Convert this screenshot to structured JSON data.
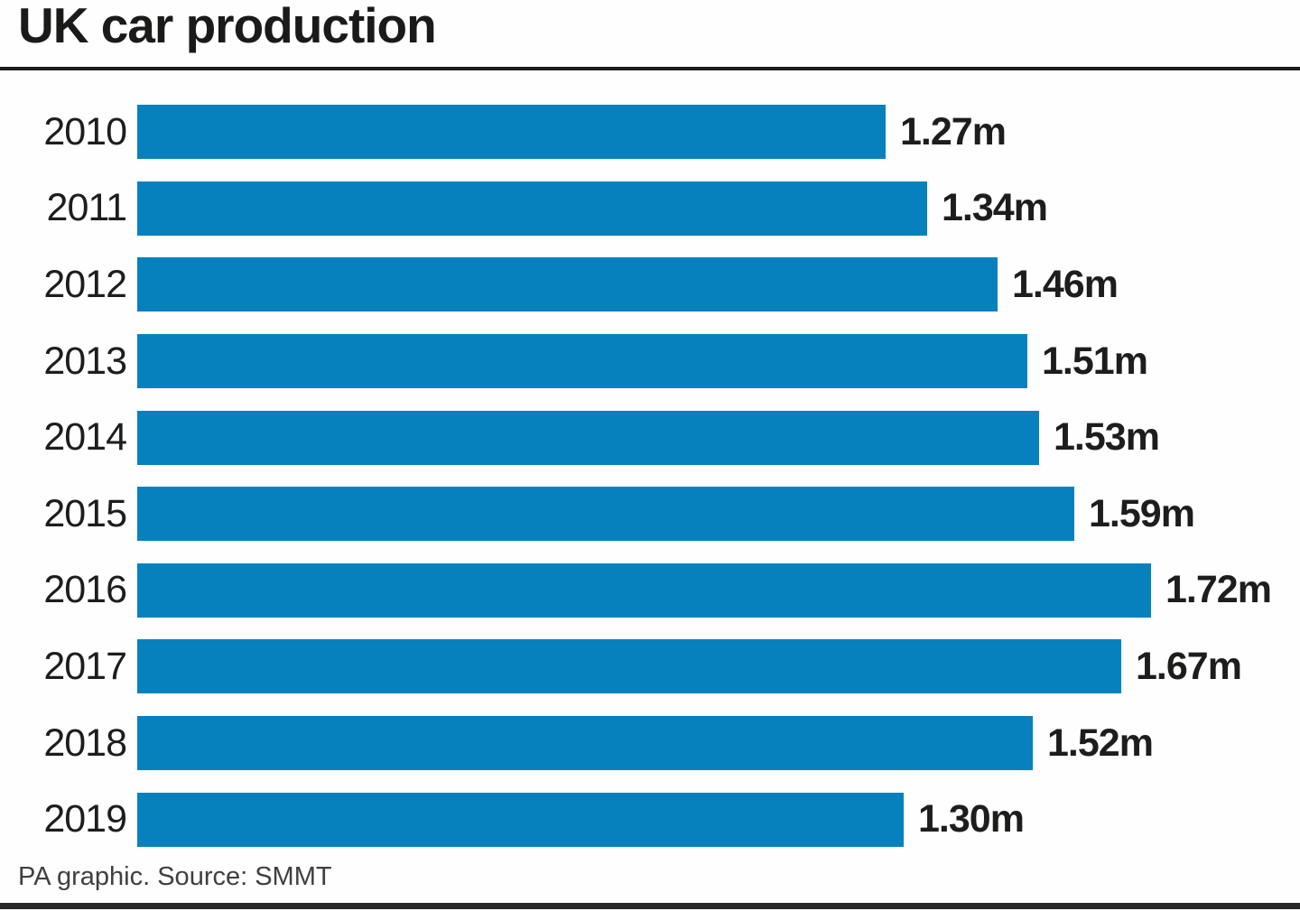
{
  "header": {
    "title": "UK car production"
  },
  "chart_data": {
    "type": "bar",
    "orientation": "horizontal",
    "title": "UK car production",
    "categories": [
      "2010",
      "2011",
      "2012",
      "2013",
      "2014",
      "2015",
      "2016",
      "2017",
      "2018",
      "2019"
    ],
    "values": [
      1.27,
      1.34,
      1.46,
      1.51,
      1.53,
      1.59,
      1.72,
      1.67,
      1.52,
      1.3
    ],
    "value_labels": [
      "1.27m",
      "1.34m",
      "1.46m",
      "1.51m",
      "1.53m",
      "1.59m",
      "1.72m",
      "1.67m",
      "1.52m",
      "1.30m"
    ],
    "xlabel": "",
    "ylabel": "",
    "xlim": [
      0,
      1.72
    ],
    "grid": false,
    "legend": false,
    "bar_color": "#0781BE",
    "label_color": "#1d1d1b"
  },
  "footer": {
    "source": "PA graphic. Source: SMMT"
  }
}
